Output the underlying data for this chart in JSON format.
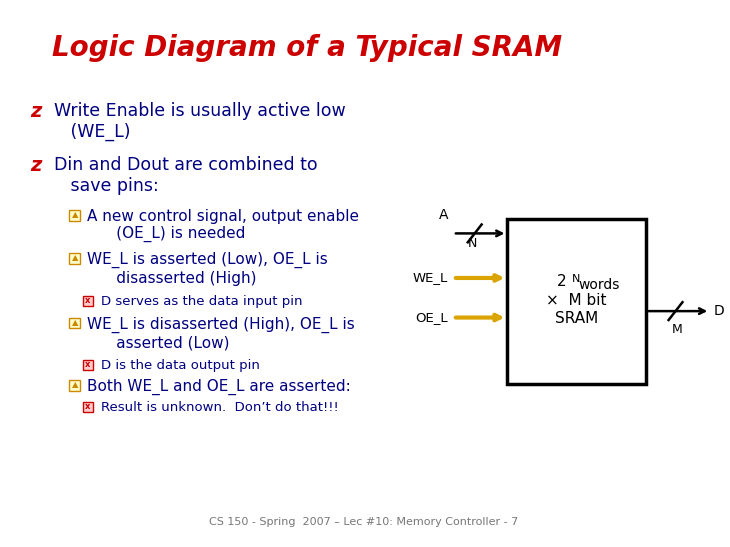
{
  "title": "Logic Diagram of a Typical SRAM",
  "title_color": "#CC0000",
  "title_fontsize": 20,
  "bg_color": "#FFFFFF",
  "bullet_color": "#CC0000",
  "text_color": "#000080",
  "footer": "CS 150 - Spring  2007 – Lec #10: Memory Controller - 7",
  "footer_color": "#777777",
  "main_bullets": [
    "Write Enable is usually active low\n   (WE_L)",
    "Din and Dout are combined to\n   save pins:"
  ],
  "sub_bullets": [
    "A new control signal, output enable\n      (OE_L) is needed",
    "WE_L is asserted (Low), OE_L is\n      disasserted (High)",
    "WE_L is disasserted (High), OE_L is\n      asserted (Low)",
    "Both WE_L and OE_L are asserted:"
  ],
  "subsub_bullets": [
    "D serves as the data input pin",
    "D is the data output pin",
    "Result is unknown.  Don’t do that!!!"
  ],
  "box_label_line1": "2 ",
  "box_label_sup": "N",
  "box_label_line1b": "words",
  "box_label_line2": "×  M bit",
  "box_label_line3": "SRAM",
  "arrow_gold": "#DAA500",
  "arrow_black": "#000000"
}
